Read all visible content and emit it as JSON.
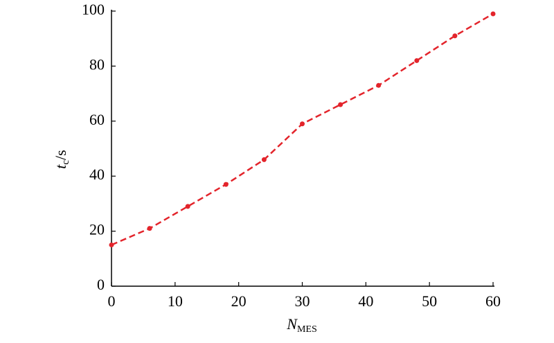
{
  "chart_data": {
    "type": "line",
    "xlabel": [
      "N",
      "MES"
    ],
    "ylabel": [
      "t",
      "c",
      "/s"
    ],
    "x": [
      0,
      6,
      12,
      18,
      24,
      30,
      36,
      42,
      48,
      54,
      60
    ],
    "series": [
      {
        "color": "#e3242b",
        "values": [
          15,
          21,
          29,
          37,
          46,
          59,
          66,
          73,
          82,
          91,
          99
        ]
      }
    ],
    "xlim": [
      0,
      60
    ],
    "xticks": [
      0,
      10,
      20,
      30,
      40,
      50,
      60
    ],
    "ylim": [
      0,
      100
    ],
    "yticks": [
      0,
      20,
      40,
      60,
      80,
      100
    ],
    "grid": false
  }
}
